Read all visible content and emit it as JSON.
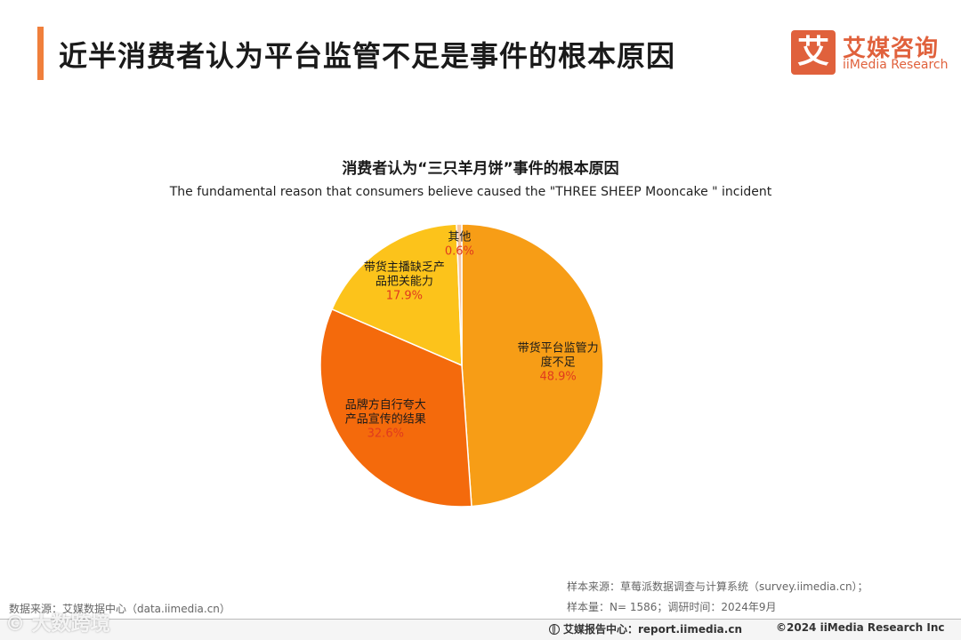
{
  "header": {
    "title": "近半消费者认为平台监管不足是事件的根本原因",
    "accent_color": "#f07f3c"
  },
  "logo": {
    "mark": "艾",
    "name_cn": "艾媒咨询",
    "name_en": "iiMedia Research",
    "color": "#e0613c"
  },
  "chart_data": {
    "type": "pie",
    "title": "消费者认为“三只羊月饼”事件的根本原因",
    "subtitle": "The fundamental reason that consumers believe caused the \"THREE SHEEP Mooncake \" incident",
    "unit": "%",
    "slices": [
      {
        "label": "带货平台监管力度不足",
        "lines": [
          "带货平台监管力",
          "度不足"
        ],
        "value": 48.9,
        "display": "48.9%",
        "color": "#f79d16"
      },
      {
        "label": "品牌方自行夸大产品宣传的结果",
        "lines": [
          "品牌方自行夸大",
          "产品宣传的结果"
        ],
        "value": 32.6,
        "display": "32.6%",
        "color": "#f46a0c"
      },
      {
        "label": "带货主播缺乏产品把关能力",
        "lines": [
          "带货主播缺乏产",
          "品把关能力"
        ],
        "value": 17.9,
        "display": "17.9%",
        "color": "#fcc31b"
      },
      {
        "label": "其他",
        "lines": [
          "其他"
        ],
        "value": 0.6,
        "display": "0.6%",
        "color": "#f7c6a0"
      }
    ]
  },
  "footer": {
    "data_source": "数据来源：艾媒数据中心（data.iimedia.cn）",
    "sample_source": "样本来源：草莓派数据调查与计算系统（survey.iimedia.cn）；",
    "sample_size": "样本量：N= 1586；调研时间：2024年9月",
    "report_center": "艾媒报告中心：report.iimedia.cn",
    "copyright": "©2024  iiMedia Research  Inc"
  },
  "watermark": {
    "text": "© 大数跨境"
  }
}
